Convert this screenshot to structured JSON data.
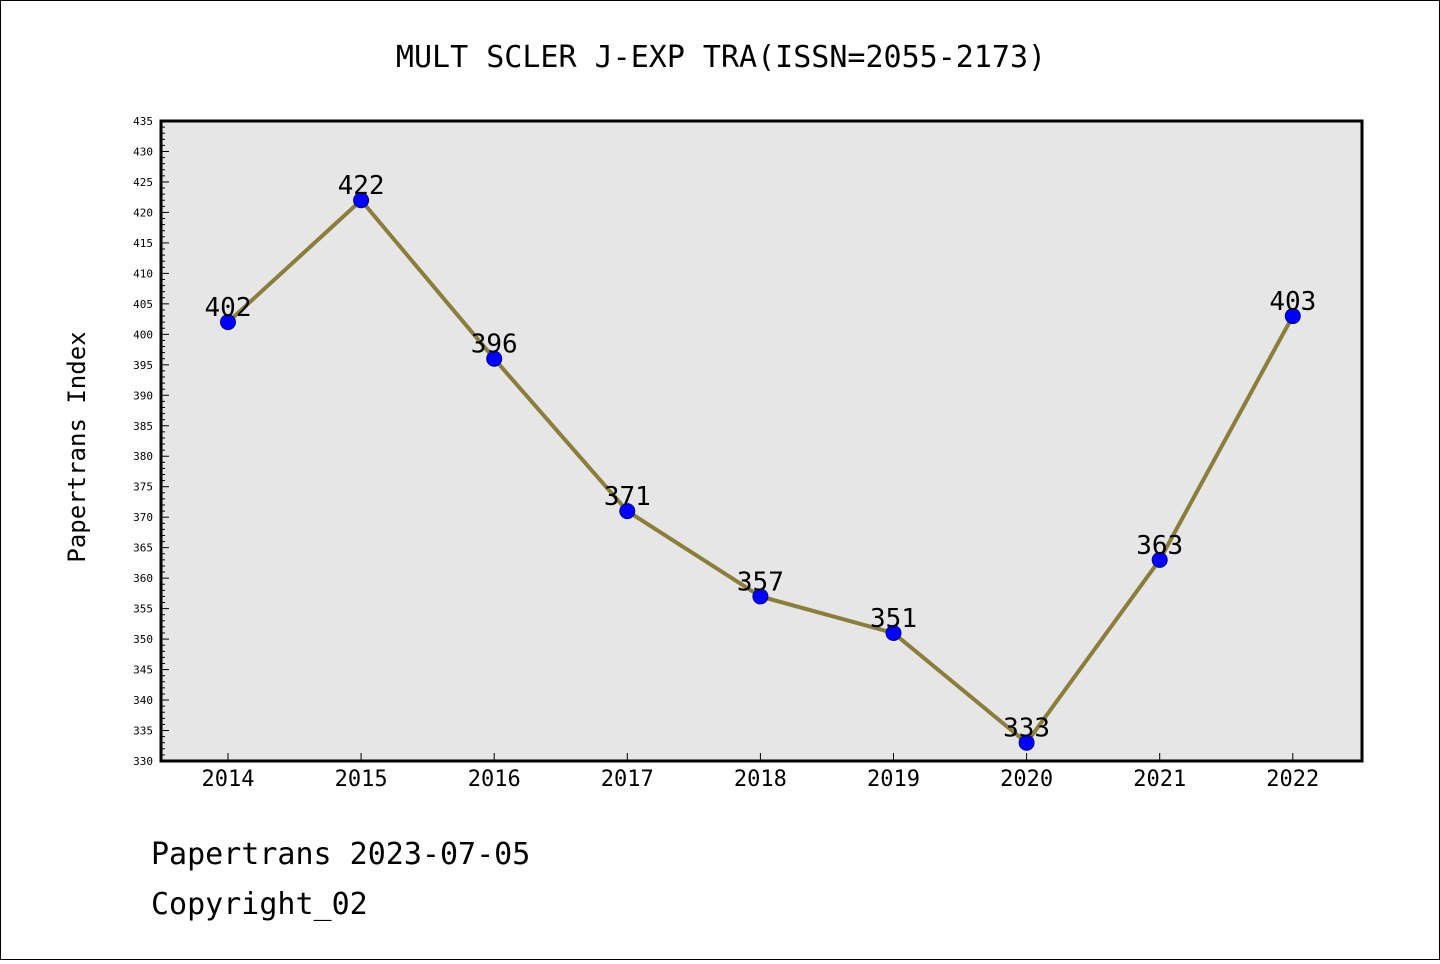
{
  "chart_data": {
    "type": "line",
    "title": "MULT SCLER J-EXP TRA(ISSN=2055-2173)",
    "xlabel": "",
    "ylabel": "Papertrans Index",
    "categories": [
      "2014",
      "2015",
      "2016",
      "2017",
      "2018",
      "2019",
      "2020",
      "2021",
      "2022"
    ],
    "values": [
      402,
      422,
      396,
      371,
      357,
      351,
      333,
      363,
      403
    ],
    "data_labels": [
      "402",
      "422",
      "396",
      "371",
      "357",
      "351",
      "333",
      "363",
      "403"
    ],
    "ylim": [
      330,
      435
    ],
    "y_ticks": [
      330,
      335,
      340,
      345,
      350,
      355,
      360,
      365,
      370,
      375,
      380,
      385,
      390,
      395,
      400,
      405,
      410,
      415,
      420,
      425,
      430,
      435
    ],
    "grid": false,
    "legend": "none",
    "colors": {
      "line": "#8b7d3a",
      "marker": "#0000ff",
      "plot_bg": "#e6e6e6"
    }
  },
  "footer": {
    "date_line": "Papertrans 2023-07-05",
    "copyright": "Copyright_02"
  }
}
